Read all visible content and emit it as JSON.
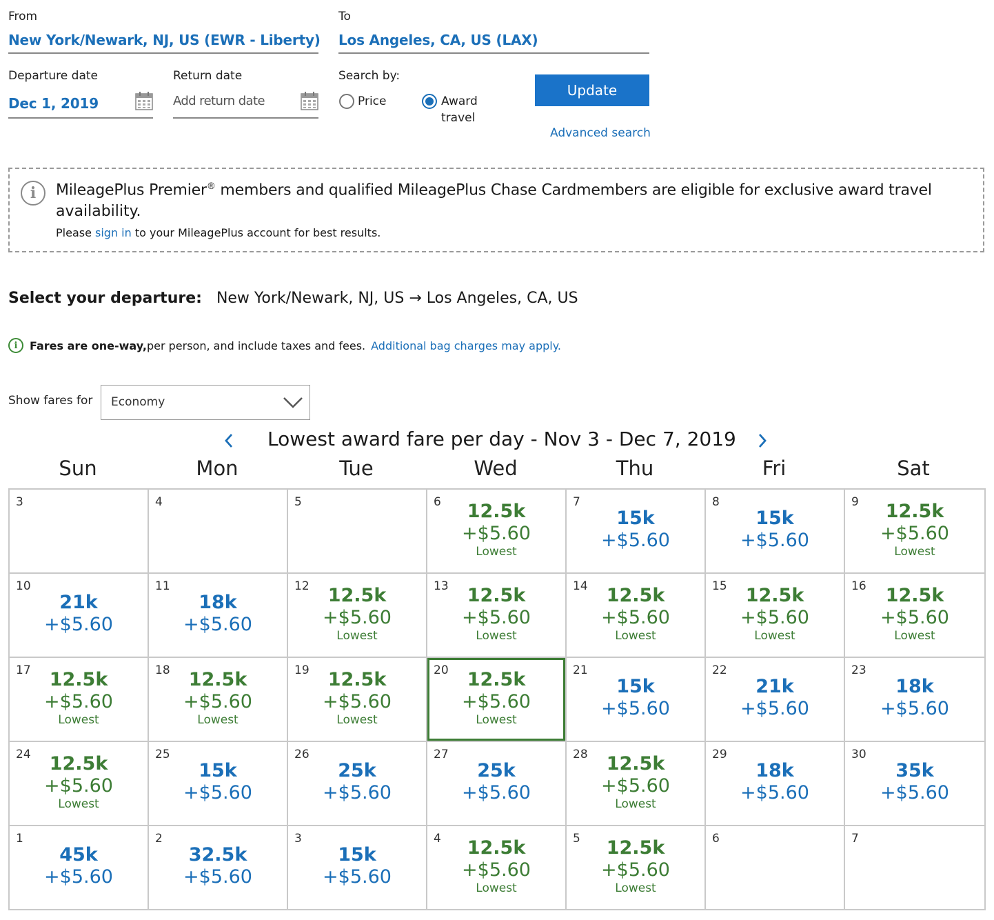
{
  "search": {
    "from_label": "From",
    "from_value": "New York/Newark, NJ, US (EWR - Liberty)",
    "to_label": "To",
    "to_value": "Los Angeles, CA, US (LAX)",
    "departure_label": "Departure date",
    "departure_value": "Dec 1, 2019",
    "return_label": "Return date",
    "return_placeholder": "Add return date",
    "search_by_label": "Search by:",
    "option_price": "Price",
    "option_award_line1": "Award",
    "option_award_line2": "travel",
    "selected_option": "award",
    "update_label": "Update",
    "advanced_link": "Advanced search"
  },
  "notice": {
    "line1_pre": "MileagePlus Premier",
    "line1_sup": "®",
    "line1_post": " members and qualified MileagePlus Chase Cardmembers are eligible for exclusive award travel",
    "line2": "availability.",
    "line3_pre": "Please ",
    "line3_link": "sign in",
    "line3_post": " to your MileagePlus account for best results."
  },
  "departure": {
    "heading": "Select your departure:",
    "route": "New York/Newark, NJ, US → Los Angeles, CA, US",
    "fare_note_bold": "Fares are one-way,",
    "fare_note_rest": " per person, and include taxes and fees.",
    "fare_note_link": "Additional bag charges may apply."
  },
  "filter": {
    "label": "Show fares for",
    "value": "Economy"
  },
  "calendar": {
    "title": "Lowest award fare per day - Nov 3 - Dec 7, 2019",
    "days_of_week": [
      "Sun",
      "Mon",
      "Tue",
      "Wed",
      "Thu",
      "Fri",
      "Sat"
    ],
    "lowest_label": "Lowest",
    "colors": {
      "lowest": "#3d7d35",
      "regular": "#1b6fb8",
      "selected_border": "#3d7d35"
    },
    "weeks": [
      [
        {
          "day": "3",
          "miles": "",
          "tax": "",
          "lowest": false
        },
        {
          "day": "4",
          "miles": "",
          "tax": "",
          "lowest": false
        },
        {
          "day": "5",
          "miles": "",
          "tax": "",
          "lowest": false
        },
        {
          "day": "6",
          "miles": "12.5k",
          "tax": "+$5.60",
          "lowest": true
        },
        {
          "day": "7",
          "miles": "15k",
          "tax": "+$5.60",
          "lowest": false
        },
        {
          "day": "8",
          "miles": "15k",
          "tax": "+$5.60",
          "lowest": false
        },
        {
          "day": "9",
          "miles": "12.5k",
          "tax": "+$5.60",
          "lowest": true
        }
      ],
      [
        {
          "day": "10",
          "miles": "21k",
          "tax": "+$5.60",
          "lowest": false
        },
        {
          "day": "11",
          "miles": "18k",
          "tax": "+$5.60",
          "lowest": false
        },
        {
          "day": "12",
          "miles": "12.5k",
          "tax": "+$5.60",
          "lowest": true
        },
        {
          "day": "13",
          "miles": "12.5k",
          "tax": "+$5.60",
          "lowest": true
        },
        {
          "day": "14",
          "miles": "12.5k",
          "tax": "+$5.60",
          "lowest": true
        },
        {
          "day": "15",
          "miles": "12.5k",
          "tax": "+$5.60",
          "lowest": true
        },
        {
          "day": "16",
          "miles": "12.5k",
          "tax": "+$5.60",
          "lowest": true
        }
      ],
      [
        {
          "day": "17",
          "miles": "12.5k",
          "tax": "+$5.60",
          "lowest": true
        },
        {
          "day": "18",
          "miles": "12.5k",
          "tax": "+$5.60",
          "lowest": true
        },
        {
          "day": "19",
          "miles": "12.5k",
          "tax": "+$5.60",
          "lowest": true
        },
        {
          "day": "20",
          "miles": "12.5k",
          "tax": "+$5.60",
          "lowest": true,
          "selected": true
        },
        {
          "day": "21",
          "miles": "15k",
          "tax": "+$5.60",
          "lowest": false
        },
        {
          "day": "22",
          "miles": "21k",
          "tax": "+$5.60",
          "lowest": false
        },
        {
          "day": "23",
          "miles": "18k",
          "tax": "+$5.60",
          "lowest": false
        }
      ],
      [
        {
          "day": "24",
          "miles": "12.5k",
          "tax": "+$5.60",
          "lowest": true
        },
        {
          "day": "25",
          "miles": "15k",
          "tax": "+$5.60",
          "lowest": false
        },
        {
          "day": "26",
          "miles": "25k",
          "tax": "+$5.60",
          "lowest": false
        },
        {
          "day": "27",
          "miles": "25k",
          "tax": "+$5.60",
          "lowest": false
        },
        {
          "day": "28",
          "miles": "12.5k",
          "tax": "+$5.60",
          "lowest": true
        },
        {
          "day": "29",
          "miles": "18k",
          "tax": "+$5.60",
          "lowest": false
        },
        {
          "day": "30",
          "miles": "35k",
          "tax": "+$5.60",
          "lowest": false
        }
      ],
      [
        {
          "day": "1",
          "miles": "45k",
          "tax": "+$5.60",
          "lowest": false
        },
        {
          "day": "2",
          "miles": "32.5k",
          "tax": "+$5.60",
          "lowest": false
        },
        {
          "day": "3",
          "miles": "15k",
          "tax": "+$5.60",
          "lowest": false
        },
        {
          "day": "4",
          "miles": "12.5k",
          "tax": "+$5.60",
          "lowest": true
        },
        {
          "day": "5",
          "miles": "12.5k",
          "tax": "+$5.60",
          "lowest": true
        },
        {
          "day": "6",
          "miles": "",
          "tax": "",
          "lowest": false
        },
        {
          "day": "7",
          "miles": "",
          "tax": "",
          "lowest": false
        }
      ]
    ]
  }
}
